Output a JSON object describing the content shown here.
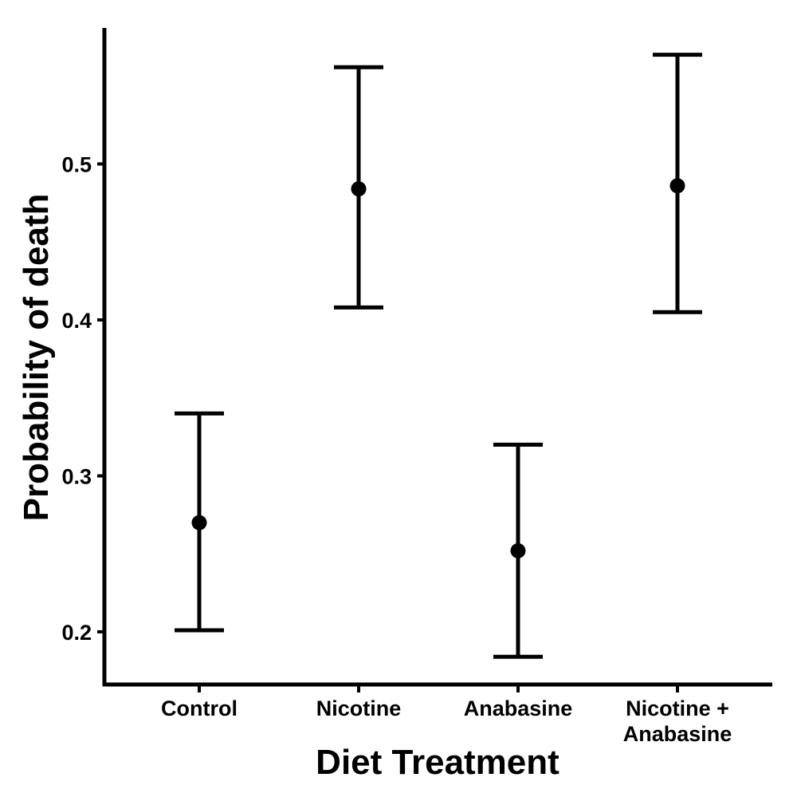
{
  "chart_data": {
    "type": "errorbar",
    "xlabel": "Diet Treatment",
    "ylabel": "Probability of death",
    "categories": [
      [
        "Control"
      ],
      [
        "Nicotine"
      ],
      [
        "Anabasine"
      ],
      [
        "Nicotine +",
        "Anabasine"
      ]
    ],
    "values": [
      0.27,
      0.484,
      0.252,
      0.486
    ],
    "lower": [
      0.201,
      0.408,
      0.184,
      0.405
    ],
    "upper": [
      0.34,
      0.562,
      0.32,
      0.57
    ],
    "yticks": [
      0.2,
      0.3,
      0.4,
      0.5
    ],
    "ytick_labels": [
      "0.2",
      "0.3",
      "0.4",
      "0.5"
    ],
    "ylim": [
      0.165,
      0.59
    ],
    "grid": false,
    "legend": "none",
    "color": "#000000"
  }
}
